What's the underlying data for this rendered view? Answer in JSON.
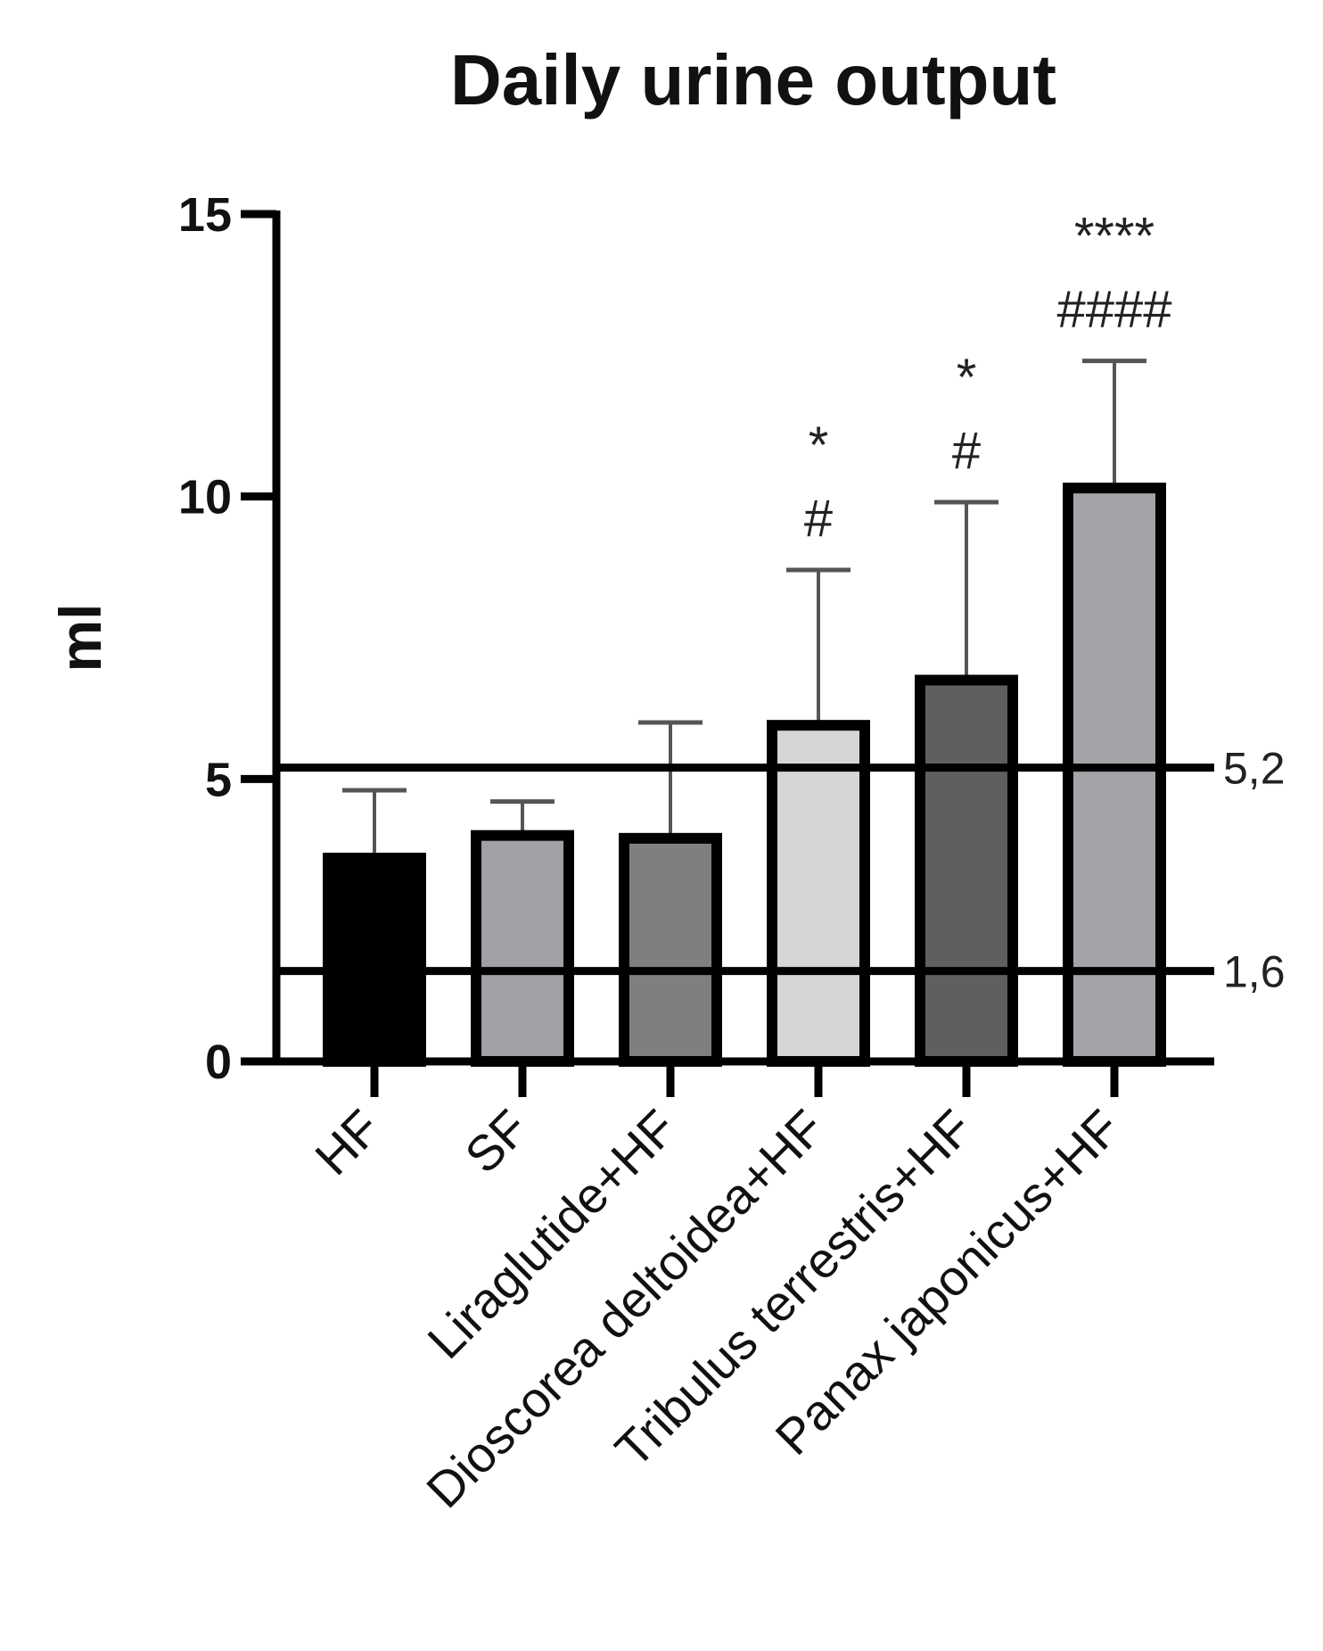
{
  "chart_data": {
    "type": "bar",
    "title": "Daily urine output",
    "ylabel": "ml",
    "xlabel": "",
    "ylim": [
      0,
      15
    ],
    "yticks": [
      0,
      5,
      10,
      15
    ],
    "grid": false,
    "categories": [
      "HF",
      "SF",
      "Liraglutide+HF",
      "Dioscorea deltoidea+HF",
      "Tribulus terrestris+HF",
      "Panax japonicus+HF"
    ],
    "values": [
      3.6,
      4.0,
      3.95,
      5.95,
      6.75,
      10.15
    ],
    "errors": [
      1.2,
      0.6,
      2.05,
      2.75,
      3.15,
      2.25
    ],
    "bar_colors": [
      "#000000",
      "#a0a0a5",
      "#7f7f7f",
      "#d6d6d6",
      "#5f5f5f",
      "#a4a4a8"
    ],
    "significance": [
      {
        "category": "Dioscorea deltoidea+HF",
        "stars": "*",
        "hashes": "#"
      },
      {
        "category": "Tribulus terrestris+HF",
        "stars": "*",
        "hashes": "#"
      },
      {
        "category": "Panax japonicus+HF",
        "stars": "****",
        "hashes": "####"
      }
    ],
    "reference_lines": [
      {
        "value": 5.2,
        "label": "5,2"
      },
      {
        "value": 1.6,
        "label": "1,6"
      }
    ]
  }
}
